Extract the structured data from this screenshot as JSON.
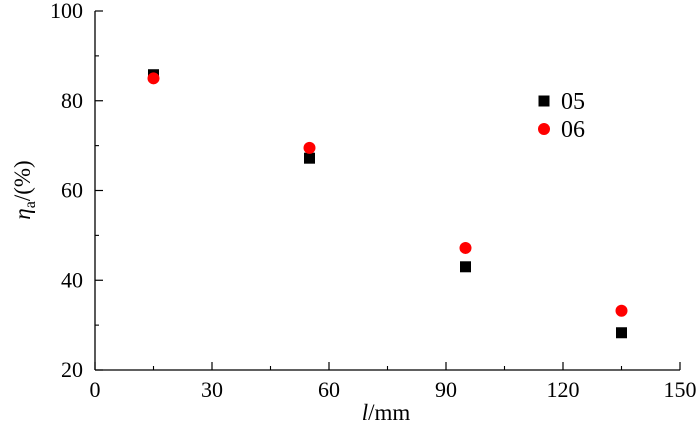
{
  "chart_data": {
    "type": "scatter",
    "title": "",
    "xlabel": {
      "var": "l",
      "unit": "/mm"
    },
    "ylabel": {
      "var": "η",
      "sub": "a",
      "unit": "/(%)"
    },
    "xlim": [
      0,
      150
    ],
    "ylim": [
      20,
      100
    ],
    "x_ticks": [
      0,
      30,
      60,
      90,
      120,
      150
    ],
    "y_ticks": [
      20,
      40,
      60,
      80,
      100
    ],
    "grid": false,
    "legend_position": "right",
    "series": [
      {
        "name": "05",
        "marker": "square",
        "color": "#000000",
        "x": [
          15,
          55,
          95,
          135
        ],
        "y": [
          85.8,
          67.2,
          43.0,
          28.3
        ]
      },
      {
        "name": "06",
        "marker": "circle",
        "color": "#ff0000",
        "x": [
          15,
          55,
          95,
          135
        ],
        "y": [
          85.0,
          69.5,
          47.2,
          33.2
        ]
      }
    ]
  }
}
